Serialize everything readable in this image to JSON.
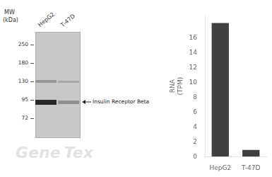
{
  "chart_data": {
    "type": "bar",
    "categories": [
      "HepG2",
      "T-47D"
    ],
    "values": [
      18.0,
      0.9
    ],
    "color": "#404040",
    "ylabel": "RNA\n(TPM)",
    "ylim": [
      0,
      19
    ],
    "yticks": [
      0,
      2,
      4,
      6,
      8,
      10,
      12,
      14,
      16
    ],
    "grid": false,
    "annotations": [
      "MW",
      "(kDa)",
      "250",
      "180",
      "130",
      "95",
      "72",
      "Insulin Receptor Beta",
      "Gene",
      "Tex"
    ]
  }
}
